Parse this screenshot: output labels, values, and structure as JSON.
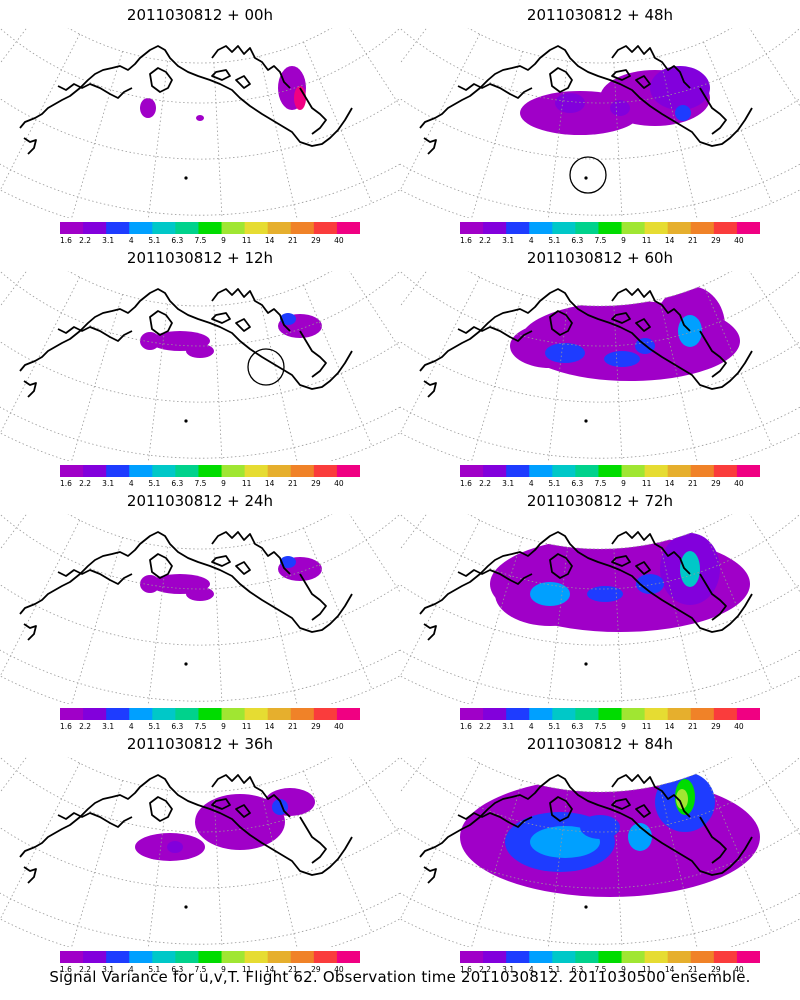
{
  "panels": [
    {
      "title": "2011030812 + 00h",
      "level": 0,
      "circle": null
    },
    {
      "title": "2011030812 + 48h",
      "level": 3,
      "circle": "pacific"
    },
    {
      "title": "2011030812 + 12h",
      "level": 1,
      "circle": "canada"
    },
    {
      "title": "2011030812 + 60h",
      "level": 4,
      "circle": null
    },
    {
      "title": "2011030812 + 24h",
      "level": 1,
      "circle": null
    },
    {
      "title": "2011030812 + 72h",
      "level": 5,
      "circle": null
    },
    {
      "title": "2011030812 + 36h",
      "level": 2,
      "circle": null
    },
    {
      "title": "2011030812 + 84h",
      "level": 6,
      "circle": null
    }
  ],
  "colorbar": {
    "colors": [
      "#a000c8",
      "#8200dc",
      "#1e3cff",
      "#00a0ff",
      "#00c8c8",
      "#00d28c",
      "#00dc00",
      "#a0e632",
      "#e6dc32",
      "#e6af2d",
      "#f08228",
      "#fa3c3c",
      "#f00082"
    ],
    "labels": [
      "1.6",
      "2.2",
      "3.1",
      "4",
      "5.1",
      "6.3",
      "7.5",
      "9",
      "11",
      "14",
      "21",
      "29",
      "40"
    ]
  },
  "caption": "Signal Variance for u,v,T. Flight 62. Observation time 2011030812. 2011030500 ensemble."
}
